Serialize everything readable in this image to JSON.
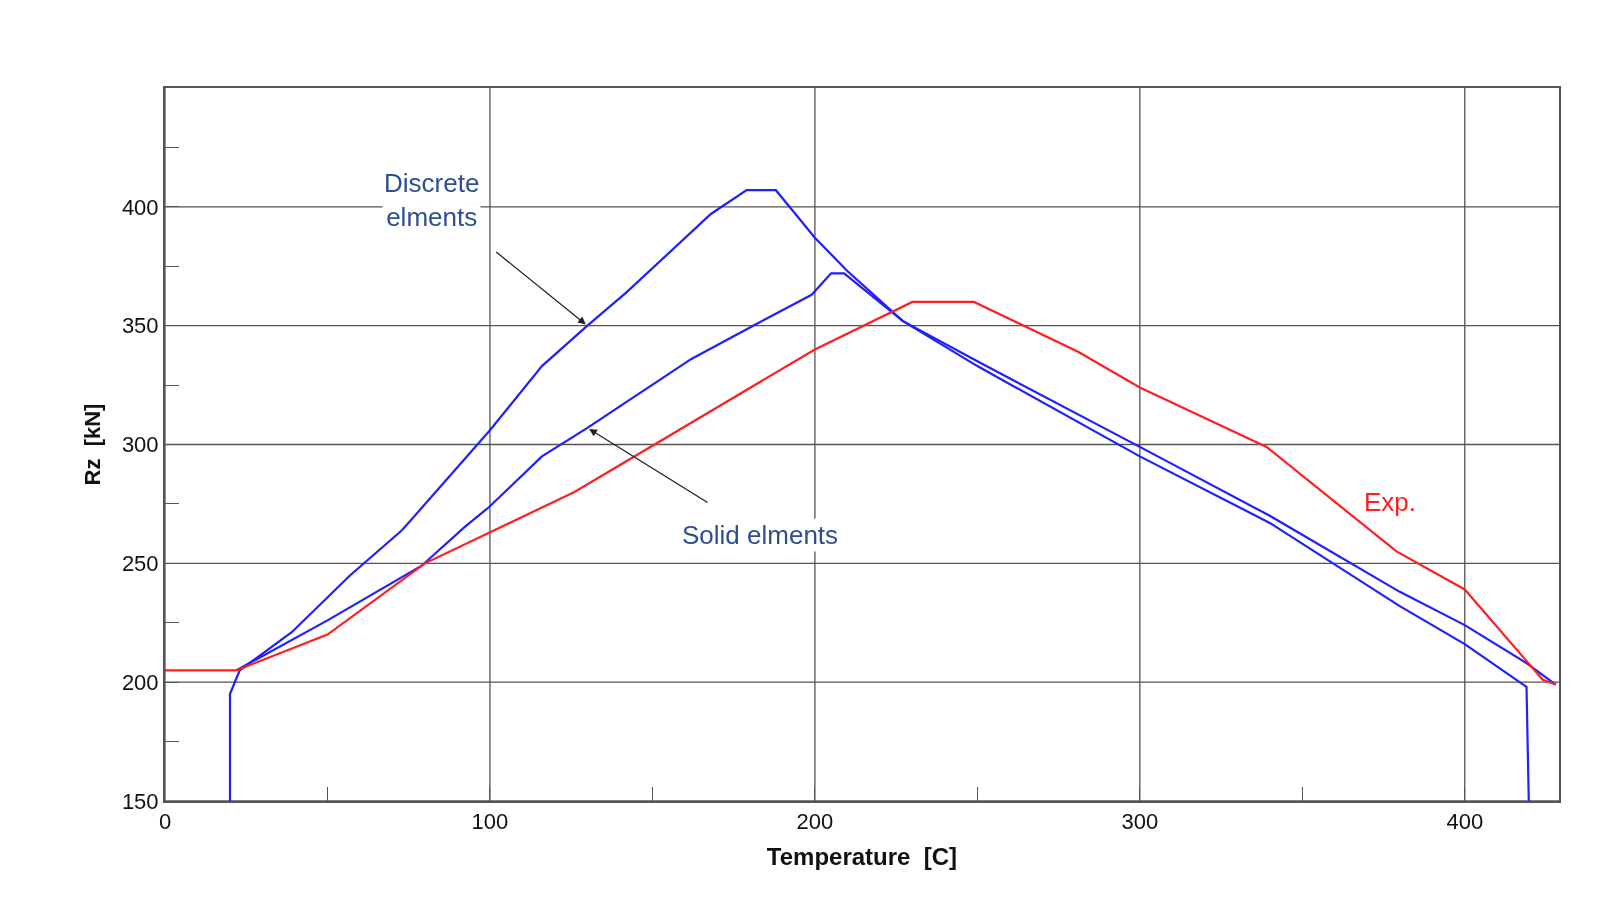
{
  "chart_data": {
    "type": "line",
    "xlabel": "Temperature  [C]",
    "ylabel": "Rz  [kN]",
    "xlim": [
      0,
      429
    ],
    "ylim": [
      150,
      450
    ],
    "xticks": [
      0,
      {
        "value": 50,
        "label": null
      },
      100,
      {
        "value": 150,
        "label": null
      },
      200,
      {
        "value": 250,
        "label": null
      },
      300,
      {
        "value": 350,
        "label": null
      },
      400
    ],
    "yticks": [
      150,
      {
        "value": 175,
        "label": null
      },
      200,
      {
        "value": 225,
        "label": null
      },
      250,
      {
        "value": 275,
        "label": null
      },
      300,
      {
        "value": 325,
        "label": null
      },
      350,
      {
        "value": 375,
        "label": null
      },
      400,
      {
        "value": 425,
        "label": null
      }
    ],
    "annotations": [
      {
        "text": "Discrete\nelments",
        "x": 130,
        "y": 350
      },
      {
        "text": "Solid elments",
        "x": 130,
        "y": 307
      }
    ],
    "grid": true,
    "legend": false,
    "marker": "none",
    "line_style": "solid",
    "series": [
      {
        "color": "#1f1fff",
        "x": [
          20,
          20,
          23,
          39,
          57,
          73,
          100,
          116,
          130,
          142,
          168,
          179,
          188,
          200,
          210,
          227,
          250,
          300,
          340,
          380,
          400,
          419,
          419.7
        ],
        "values": [
          150,
          195,
          205,
          221,
          245,
          264,
          306,
          333,
          350,
          364,
          397,
          407,
          407,
          387,
          373,
          352,
          333,
          295,
          267,
          232,
          216,
          198,
          150
        ]
      },
      {
        "color": "#1f1fff",
        "x": [
          22,
          50,
          79,
          92,
          100,
          116,
          130,
          141,
          162,
          181,
          199,
          205,
          209,
          227,
          250,
          300,
          340,
          380,
          400,
          419,
          428
        ],
        "values": [
          205,
          226,
          249,
          265,
          274,
          295,
          307,
          317,
          336,
          350,
          363,
          372,
          372,
          352,
          335,
          299,
          270,
          238,
          224,
          208,
          199
        ]
      },
      {
        "name": "Exp.",
        "color": "#ff1f1f",
        "x": [
          0,
          22,
          50,
          80,
          126,
          200,
          230,
          249,
          281,
          300,
          339,
          379,
          400,
          424,
          428
        ],
        "values": [
          205,
          205,
          220,
          250,
          280,
          340,
          360,
          360,
          339,
          324,
          299,
          255,
          239,
          201,
          199
        ]
      }
    ]
  }
}
